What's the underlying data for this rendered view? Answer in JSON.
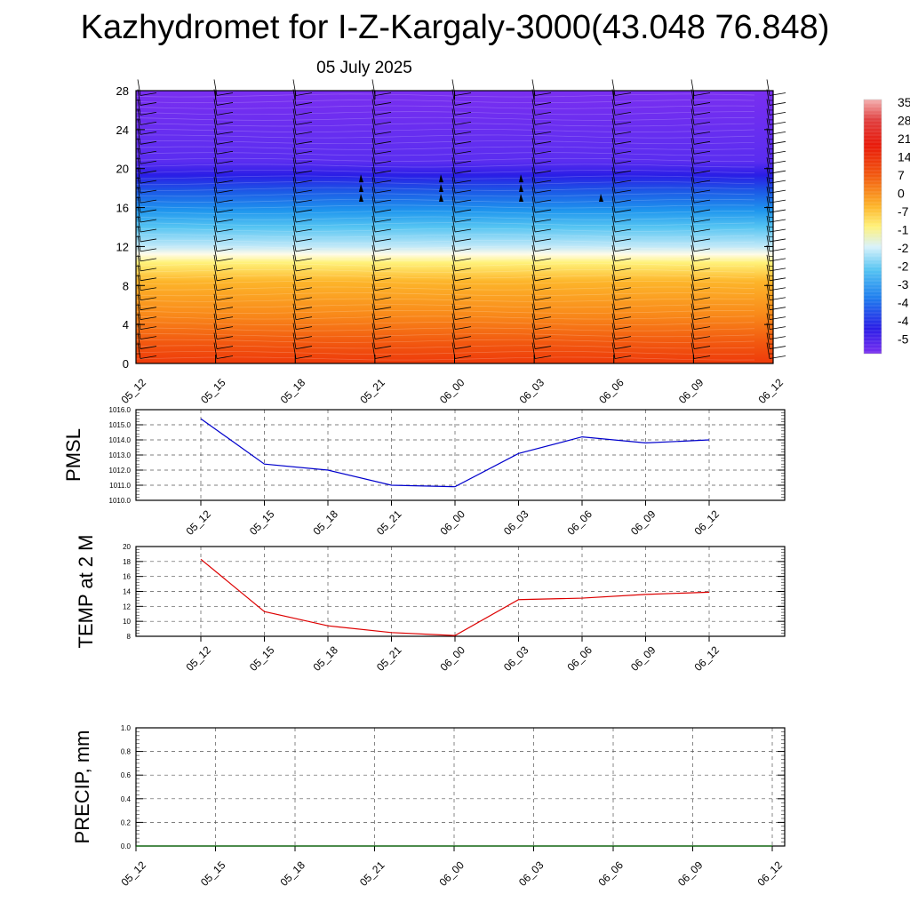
{
  "title": "Kazhydromet for I-Z-Kargaly-3000(43.048 76.848)",
  "subtitle": "05 July 2025",
  "colors": {
    "pmsl_line": "#0000cc",
    "temp_line": "#dd0000",
    "precip_line": "#006400",
    "grid": "#555555"
  },
  "chart_data": [
    {
      "type": "heatmap",
      "title": "",
      "x_ticks": [
        "05_12",
        "05_15",
        "05_18",
        "05_21",
        "06_00",
        "06_03",
        "06_06",
        "06_09",
        "06_12"
      ],
      "y_ticks": [
        "0",
        "4",
        "8",
        "12",
        "16",
        "20",
        "24",
        "28"
      ],
      "ylim": [
        0,
        28
      ],
      "colorbar_labels": [
        "35",
        "28",
        "21",
        "14",
        "7",
        "0",
        "-7",
        "-1",
        "-2",
        "-2",
        "-3",
        "-4",
        "-4",
        "-5"
      ],
      "temperature_profile": [
        {
          "level": 0,
          "value": 17
        },
        {
          "level": 4,
          "value": 10
        },
        {
          "level": 8,
          "value": 5
        },
        {
          "level": 11,
          "value": 0
        },
        {
          "level": 12,
          "value": -10
        },
        {
          "level": 14,
          "value": -25
        },
        {
          "level": 16,
          "value": -35
        },
        {
          "level": 18,
          "value": -45
        },
        {
          "level": 20,
          "value": -52
        },
        {
          "level": 28,
          "value": -55
        }
      ]
    },
    {
      "type": "line",
      "ylabel": "PMSL",
      "x_ticks": [
        "05_12",
        "05_15",
        "05_18",
        "05_21",
        "06_00",
        "06_03",
        "06_06",
        "06_09",
        "06_12"
      ],
      "y_ticks": [
        "1010.0",
        "1011.0",
        "1012.0",
        "1013.0",
        "1014.0",
        "1015.0",
        "1016.0"
      ],
      "ylim": [
        1010,
        1016
      ],
      "series": [
        {
          "values": [
            1015.4,
            1012.4,
            1012.0,
            1011.0,
            1010.9,
            1013.1,
            1014.2,
            1013.8,
            1014.0
          ]
        }
      ]
    },
    {
      "type": "line",
      "ylabel": "TEMP at 2 M",
      "x_ticks": [
        "05_12",
        "05_15",
        "05_18",
        "05_21",
        "06_00",
        "06_03",
        "06_06",
        "06_09",
        "06_12"
      ],
      "y_ticks": [
        "8",
        "10",
        "12",
        "14",
        "16",
        "18",
        "20"
      ],
      "ylim": [
        8,
        20
      ],
      "series": [
        {
          "values": [
            18.3,
            11.3,
            9.4,
            8.5,
            8.1,
            12.9,
            13.1,
            13.6,
            13.9
          ]
        }
      ]
    },
    {
      "type": "line",
      "ylabel": "PRECIP, mm",
      "x_ticks": [
        "05_12",
        "05_15",
        "05_18",
        "05_21",
        "06_00",
        "06_03",
        "06_06",
        "06_09",
        "06_12"
      ],
      "y_ticks": [
        "0.0",
        "0.2",
        "0.4",
        "0.6",
        "0.8",
        "1.0"
      ],
      "ylim": [
        0,
        1
      ],
      "series": [
        {
          "values": [
            0,
            0,
            0,
            0,
            0,
            0,
            0,
            0,
            0
          ]
        }
      ]
    }
  ]
}
